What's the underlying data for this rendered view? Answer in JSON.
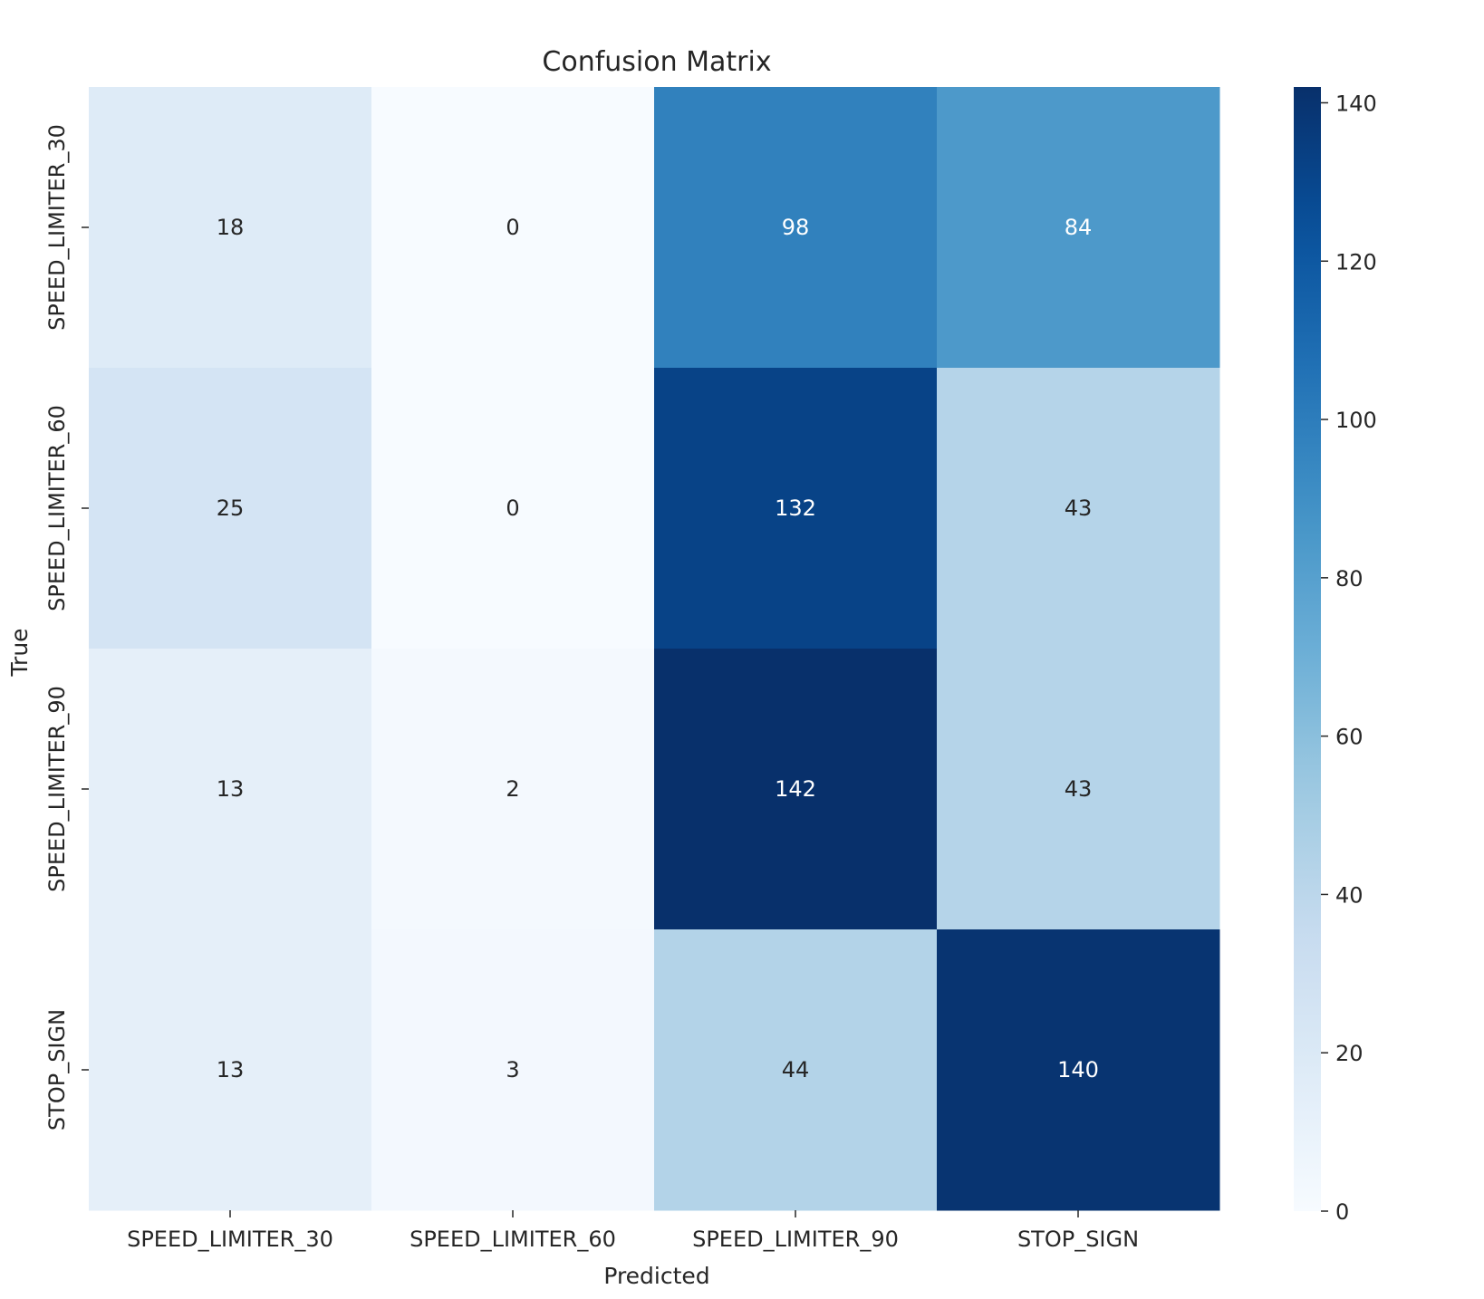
{
  "chart_data": {
    "type": "heatmap",
    "title": "Confusion Matrix",
    "xlabel": "Predicted",
    "ylabel": "True",
    "x_categories": [
      "SPEED_LIMITER_30",
      "SPEED_LIMITER_60",
      "SPEED_LIMITER_90",
      "STOP_SIGN"
    ],
    "y_categories": [
      "SPEED_LIMITER_30",
      "SPEED_LIMITER_60",
      "SPEED_LIMITER_90",
      "STOP_SIGN"
    ],
    "values": [
      [
        18,
        0,
        98,
        84
      ],
      [
        25,
        0,
        132,
        43
      ],
      [
        13,
        2,
        142,
        43
      ],
      [
        13,
        3,
        44,
        140
      ]
    ],
    "value_range": [
      0,
      142
    ],
    "colormap": "Blues",
    "colorbar": {
      "ticks": [
        0,
        20,
        40,
        60,
        80,
        100,
        120,
        140
      ],
      "tick_labels": [
        "0",
        "20",
        "40",
        "60",
        "80",
        "100",
        "120",
        "140"
      ]
    },
    "colors": {
      "low": "#f7fbff",
      "high": "#08306b",
      "text_dark": "#262626",
      "text_light": "#ffffff"
    }
  }
}
